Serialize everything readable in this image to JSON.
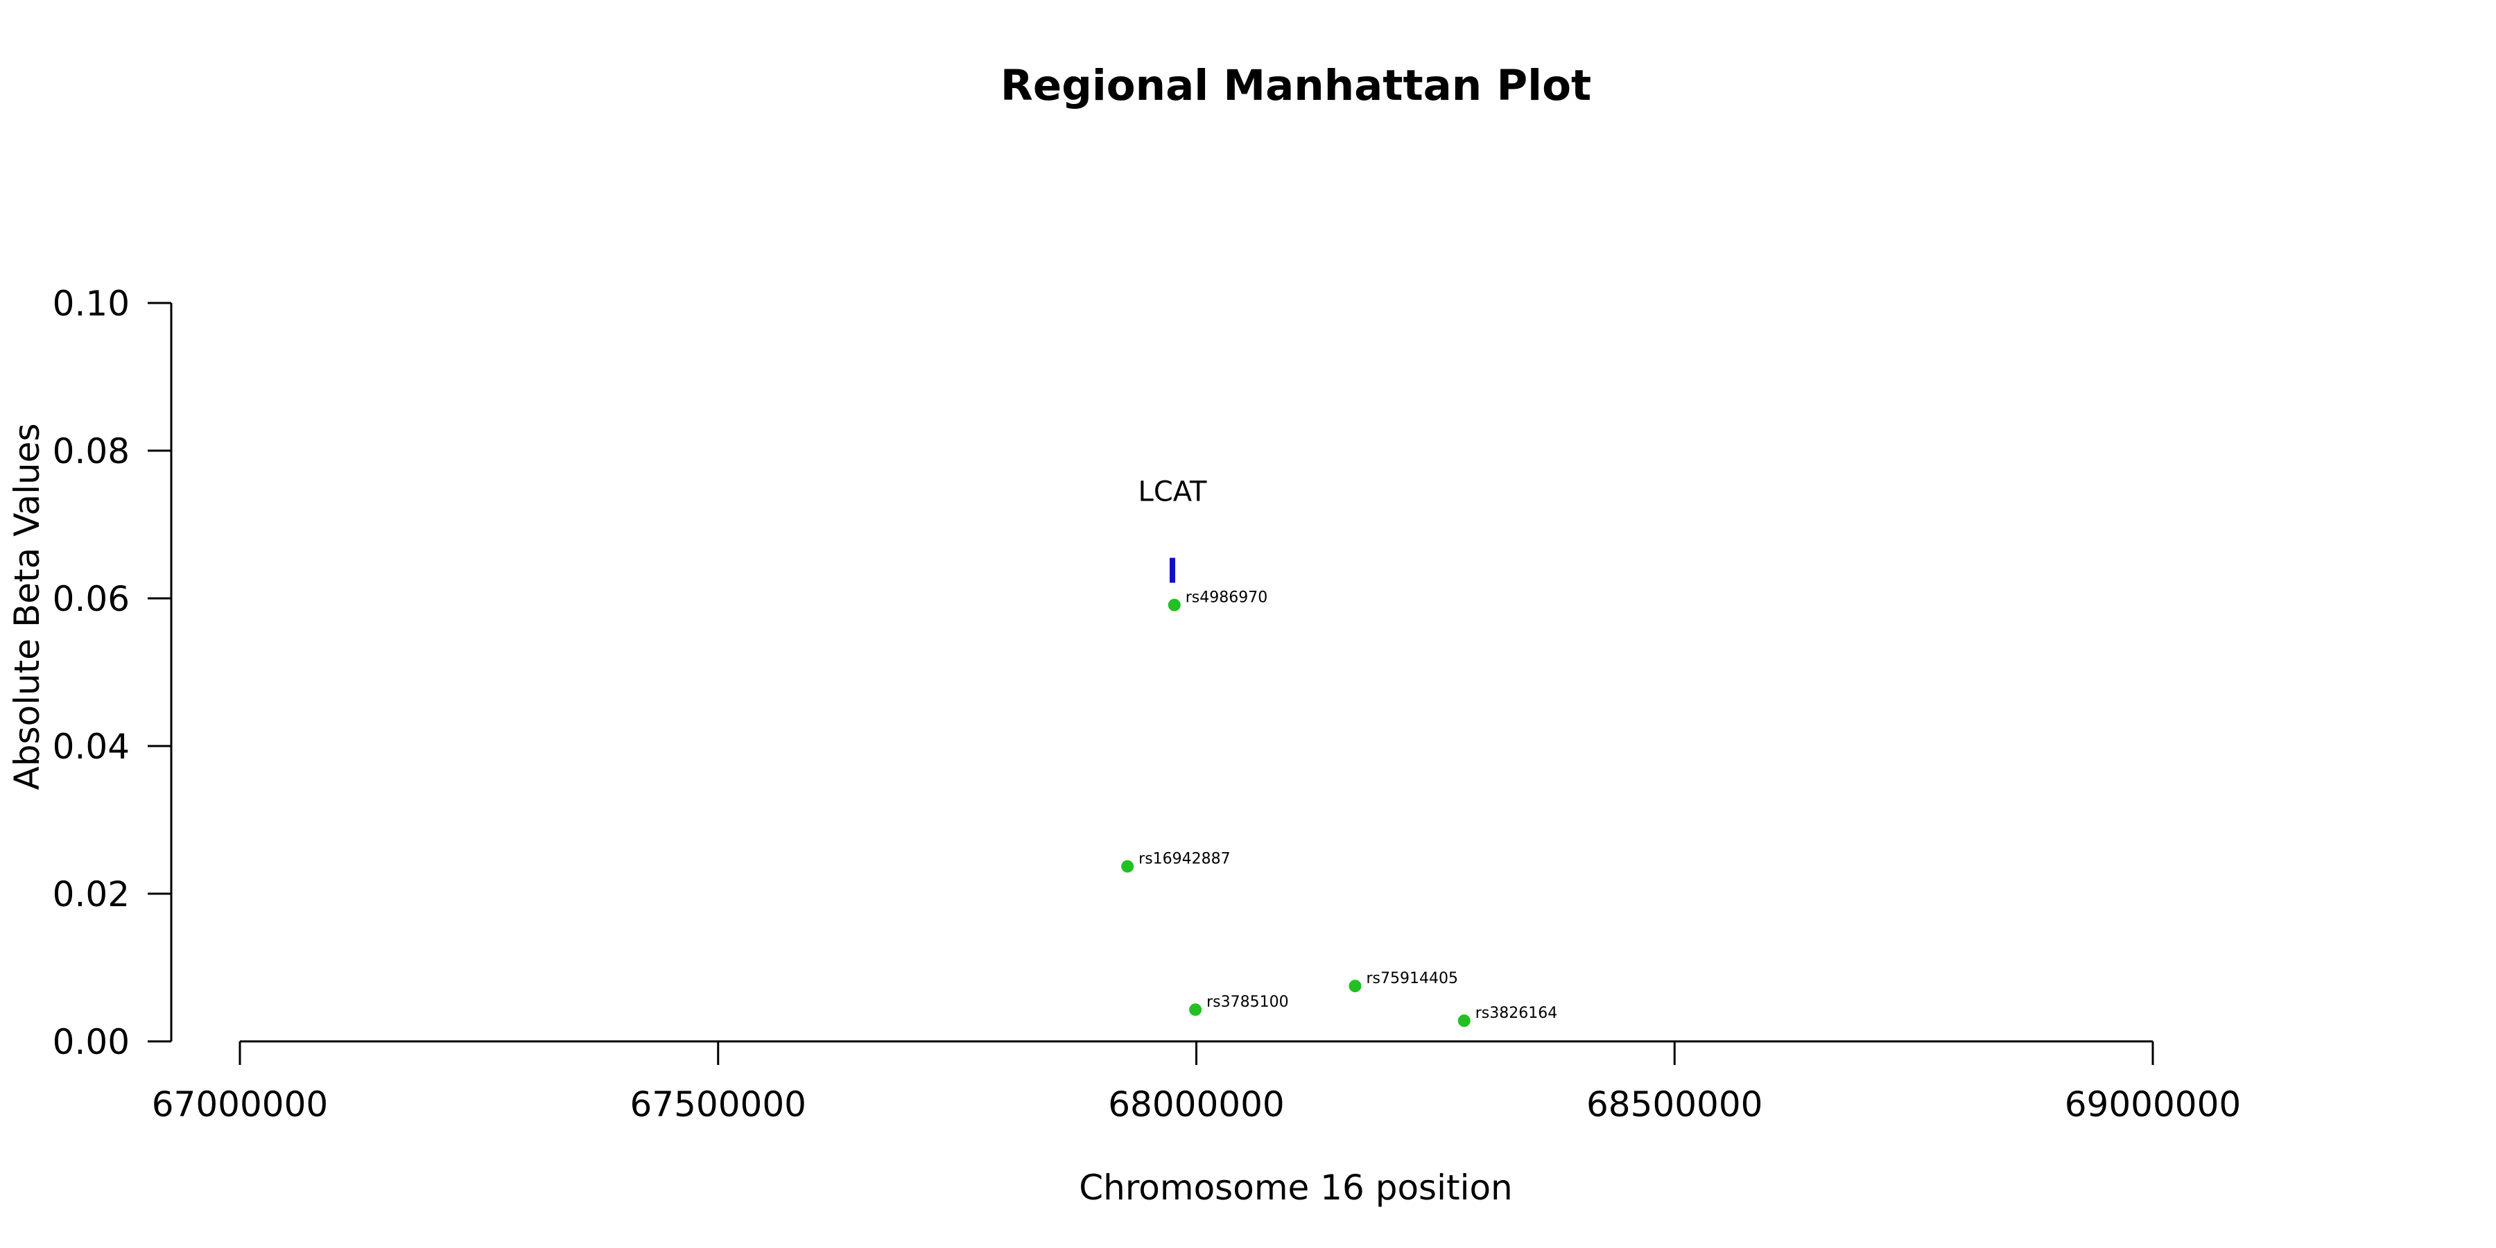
{
  "chart_data": {
    "type": "scatter",
    "title": "Regional Manhattan Plot",
    "xlabel": "Chromosome 16 position",
    "ylabel": "Absolute Beta Values",
    "xlim": [
      67000000,
      69000000
    ],
    "ylim": [
      0,
      0.1
    ],
    "x_ticks": [
      67000000,
      67500000,
      68000000,
      68500000,
      69000000
    ],
    "x_tick_labels": [
      "67000000",
      "67500000",
      "68000000",
      "68500000",
      "69000000"
    ],
    "y_ticks": [
      0,
      0.02,
      0.04,
      0.06,
      0.08,
      0.1
    ],
    "y_tick_labels": [
      "0.00",
      "0.02",
      "0.04",
      "0.06",
      "0.08",
      "0.10"
    ],
    "grid": false,
    "point_color": "#22c022",
    "points": [
      {
        "label": "rs4986970",
        "x": 67977000,
        "y": 0.0591
      },
      {
        "label": "rs16942887",
        "x": 67928000,
        "y": 0.0237
      },
      {
        "label": "rs75914405",
        "x": 68166000,
        "y": 0.0075
      },
      {
        "label": "rs3785100",
        "x": 67999000,
        "y": 0.0043
      },
      {
        "label": "rs3826164",
        "x": 68280000,
        "y": 0.0028
      }
    ],
    "genes": [
      {
        "name": "LCAT",
        "start": 67973000,
        "end": 67977000,
        "y": 0.0638,
        "color": "#1010cc"
      }
    ]
  }
}
